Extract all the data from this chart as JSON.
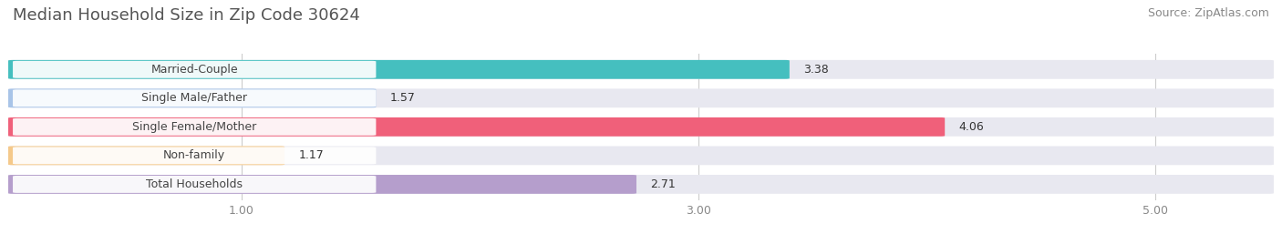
{
  "title": "Median Household Size in Zip Code 30624",
  "source": "Source: ZipAtlas.com",
  "categories": [
    "Married-Couple",
    "Single Male/Father",
    "Single Female/Mother",
    "Non-family",
    "Total Households"
  ],
  "values": [
    3.38,
    1.57,
    4.06,
    1.17,
    2.71
  ],
  "bar_colors": [
    "#45bfbf",
    "#a8c4e8",
    "#f0607a",
    "#f5c98a",
    "#b59ecc"
  ],
  "bar_height": 0.62,
  "xlim_min": 0.0,
  "xlim_max": 5.5,
  "xticks": [
    1.0,
    3.0,
    5.0
  ],
  "xticklabels": [
    "1.00",
    "3.00",
    "5.00"
  ],
  "background_color": "#ffffff",
  "bar_bg_color": "#e8e8f0",
  "title_fontsize": 13,
  "label_fontsize": 9,
  "value_fontsize": 9,
  "source_fontsize": 9,
  "value_label_colors": [
    "#333333",
    "#333333",
    "#ffffff",
    "#333333",
    "#333333"
  ]
}
